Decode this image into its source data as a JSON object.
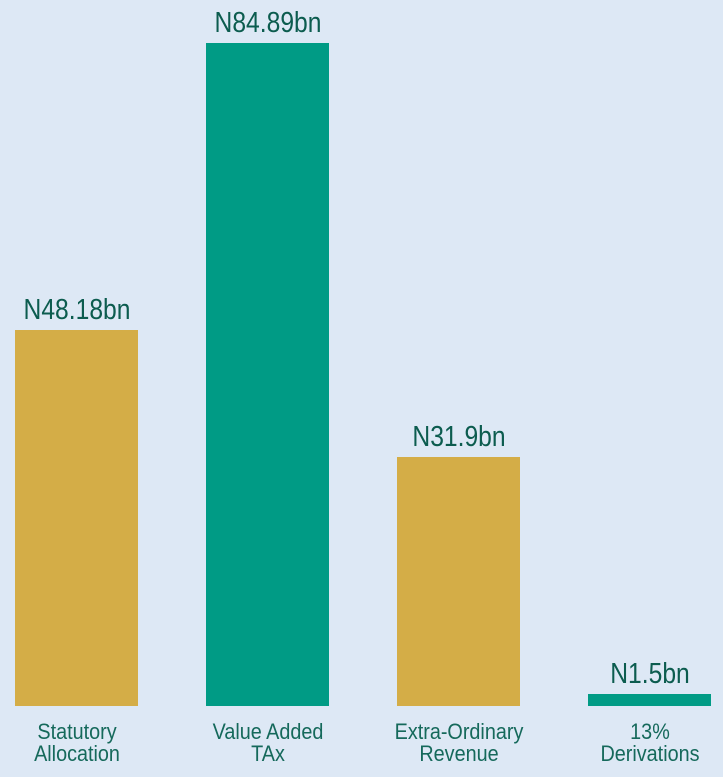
{
  "chart_data": {
    "type": "bar",
    "categories": [
      "Statutory Allocation",
      "Value Added TAx",
      "Extra-Ordinary Revenue",
      "13% Derivations"
    ],
    "values": [
      48.18,
      84.89,
      31.9,
      1.5
    ],
    "value_labels": [
      "N48.18bn",
      "N84.89bn",
      "N31.9bn",
      "N1.5bn"
    ],
    "colors": [
      "#d4ad47",
      "#009b85",
      "#d4ad47",
      "#009b85"
    ]
  }
}
